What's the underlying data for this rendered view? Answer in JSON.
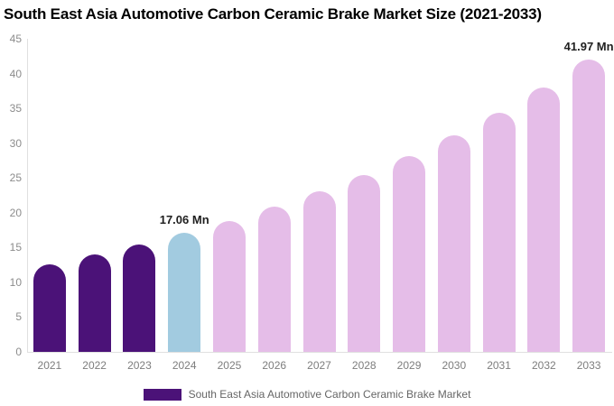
{
  "title": "South East Asia Automotive Carbon Ceramic Brake Market Size (2021-2033)",
  "chart_data": {
    "type": "bar",
    "title": "South East Asia Automotive Carbon Ceramic Brake Market Size (2021-2033)",
    "xlabel": "",
    "ylabel": "",
    "unit": "Mn",
    "ylim": [
      0,
      45
    ],
    "ytick_step": 5,
    "grid": false,
    "categories": [
      "2021",
      "2022",
      "2023",
      "2024",
      "2025",
      "2026",
      "2027",
      "2028",
      "2029",
      "2030",
      "2031",
      "2032",
      "2033"
    ],
    "values": [
      12.64,
      13.97,
      15.44,
      17.06,
      18.85,
      20.84,
      23.03,
      25.45,
      28.13,
      31.08,
      34.35,
      37.97,
      41.97
    ],
    "bar_colors": [
      "#4b1278",
      "#4b1278",
      "#4b1278",
      "#a2cbe0",
      "#e5bde8",
      "#e5bde8",
      "#e5bde8",
      "#e5bde8",
      "#e5bde8",
      "#e5bde8",
      "#e5bde8",
      "#e5bde8",
      "#e5bde8"
    ],
    "annotations": [
      {
        "category": "2024",
        "text": "17.06 Mn"
      },
      {
        "category": "2033",
        "text": "41.97 Mn"
      }
    ],
    "legend": {
      "position": "bottom",
      "label": "South East Asia Automotive Carbon Ceramic Brake Market",
      "swatch_color": "#4b1278"
    },
    "colors": {
      "axis_line": "#e0e0e0",
      "y_tick_text": "#8c8c8c",
      "x_tick_text": "#7d7d7d",
      "annotation_text": "#1f1f1f",
      "legend_text": "#666666",
      "background": "#ffffff"
    }
  }
}
